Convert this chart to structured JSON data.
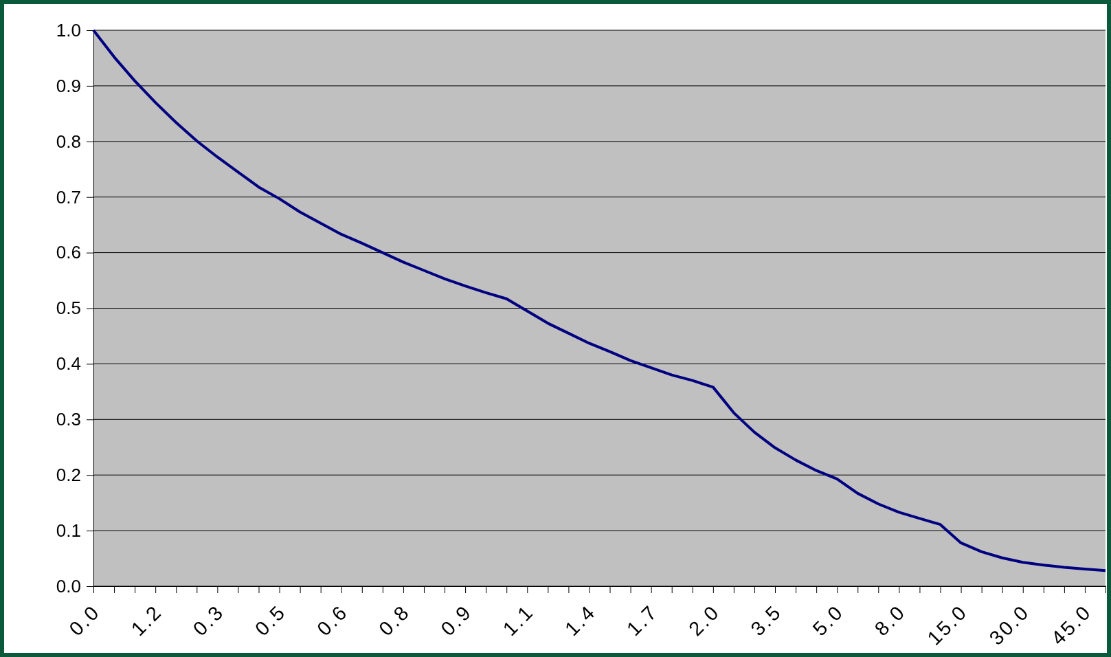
{
  "chart_data": {
    "type": "line",
    "categories": [
      "0.0",
      null,
      null,
      "1.2",
      null,
      null,
      "0.3",
      null,
      null,
      "0.5",
      null,
      null,
      "0.6",
      null,
      null,
      "0.8",
      null,
      null,
      "0.9",
      null,
      null,
      "1.1",
      null,
      null,
      "1.4",
      null,
      null,
      "1.7",
      null,
      null,
      "2.0",
      null,
      null,
      "3.5",
      null,
      null,
      "5.0",
      null,
      null,
      "8.0",
      null,
      null,
      "15.0",
      null,
      null,
      "30.0",
      null,
      null,
      "45.0",
      null
    ],
    "series": [
      {
        "color": "#000080",
        "values": [
          1.0,
          0.952,
          0.909,
          0.87,
          0.834,
          0.801,
          0.772,
          0.745,
          0.718,
          0.697,
          0.673,
          0.653,
          0.633,
          0.617,
          0.6,
          0.583,
          0.568,
          0.553,
          0.54,
          0.528,
          0.517,
          0.495,
          0.473,
          0.455,
          0.437,
          0.422,
          0.406,
          0.393,
          0.38,
          0.37,
          0.358,
          0.312,
          0.277,
          0.249,
          0.227,
          0.208,
          0.193,
          0.167,
          0.148,
          0.133,
          0.122,
          0.111,
          0.078,
          0.062,
          0.051,
          0.043,
          0.038,
          0.034,
          0.031,
          0.028
        ]
      }
    ],
    "ylim": [
      0,
      1
    ],
    "yticks": [
      {
        "value": 0,
        "label": "0.0"
      },
      {
        "value": 0.1,
        "label": "0.1"
      },
      {
        "value": 0.2,
        "label": "0.2"
      },
      {
        "value": 0.3,
        "label": "0.3"
      },
      {
        "value": 0.4,
        "label": "0.4"
      },
      {
        "value": 0.5,
        "label": "0.5"
      },
      {
        "value": 0.6,
        "label": "0.6"
      },
      {
        "value": 0.7,
        "label": "0.7"
      },
      {
        "value": 0.8,
        "label": "0.8"
      },
      {
        "value": 0.9,
        "label": "0.9"
      },
      {
        "value": 1,
        "label": "1.0"
      }
    ],
    "grid": "y",
    "marker": "none",
    "line_style": "solid"
  }
}
